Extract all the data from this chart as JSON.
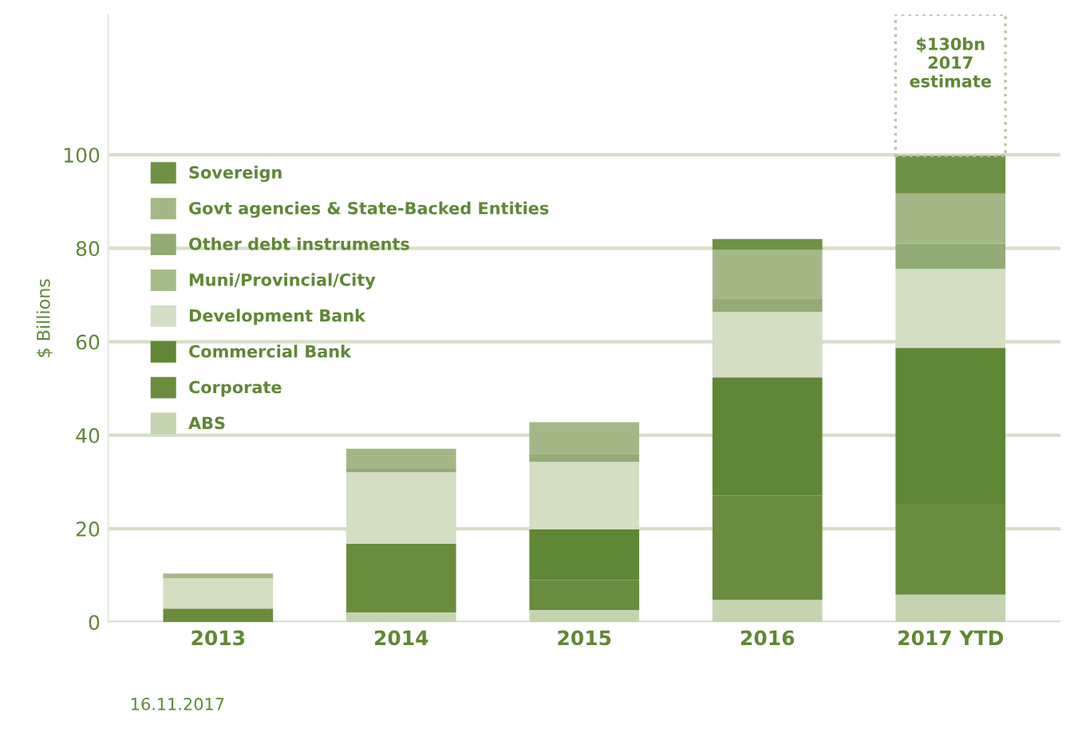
{
  "chart_data": {
    "type": "bar",
    "stacked": true,
    "ylabel": "$ Billions",
    "categories": [
      "2013",
      "2014",
      "2015",
      "2016",
      "2017 YTD"
    ],
    "series": [
      {
        "name": "ABS",
        "color": "#c5d4b0",
        "values": [
          0,
          2.1,
          2.6,
          4.8,
          5.9
        ]
      },
      {
        "name": "Corporate",
        "color": "#6a8c3e",
        "values": [
          2.9,
          14.7,
          6.4,
          22.3,
          19.4
        ]
      },
      {
        "name": "Commercial Bank",
        "color": "#5f8735",
        "values": [
          0,
          0,
          10.9,
          25.3,
          33.4
        ]
      },
      {
        "name": "Development Bank",
        "color": "#d3dec3",
        "values": [
          6.5,
          15.3,
          14.4,
          14.0,
          16.9
        ]
      },
      {
        "name": "Muni/Provincial/City",
        "color": "#a6bb8a",
        "values": [
          1.0,
          0,
          0,
          0,
          0
        ]
      },
      {
        "name": "Other debt instruments",
        "color": "#93ab74",
        "values": [
          0,
          0.7,
          1.7,
          2.9,
          5.4
        ]
      },
      {
        "name": "Govt agencies & State-Backed Entities",
        "color": "#a3b886",
        "values": [
          0,
          4.3,
          6.8,
          10.4,
          10.7
        ]
      },
      {
        "name": "Sovereign",
        "color": "#6f9146",
        "values": [
          0,
          0,
          0,
          2.3,
          8.1
        ]
      }
    ],
    "ylim": [
      0,
      130
    ],
    "yticks": [
      0,
      20,
      40,
      60,
      80,
      100
    ],
    "grid": "y",
    "legend": "top left",
    "annotations": [
      "$130bn\n2017\nestimate",
      "16.11.2017"
    ]
  }
}
